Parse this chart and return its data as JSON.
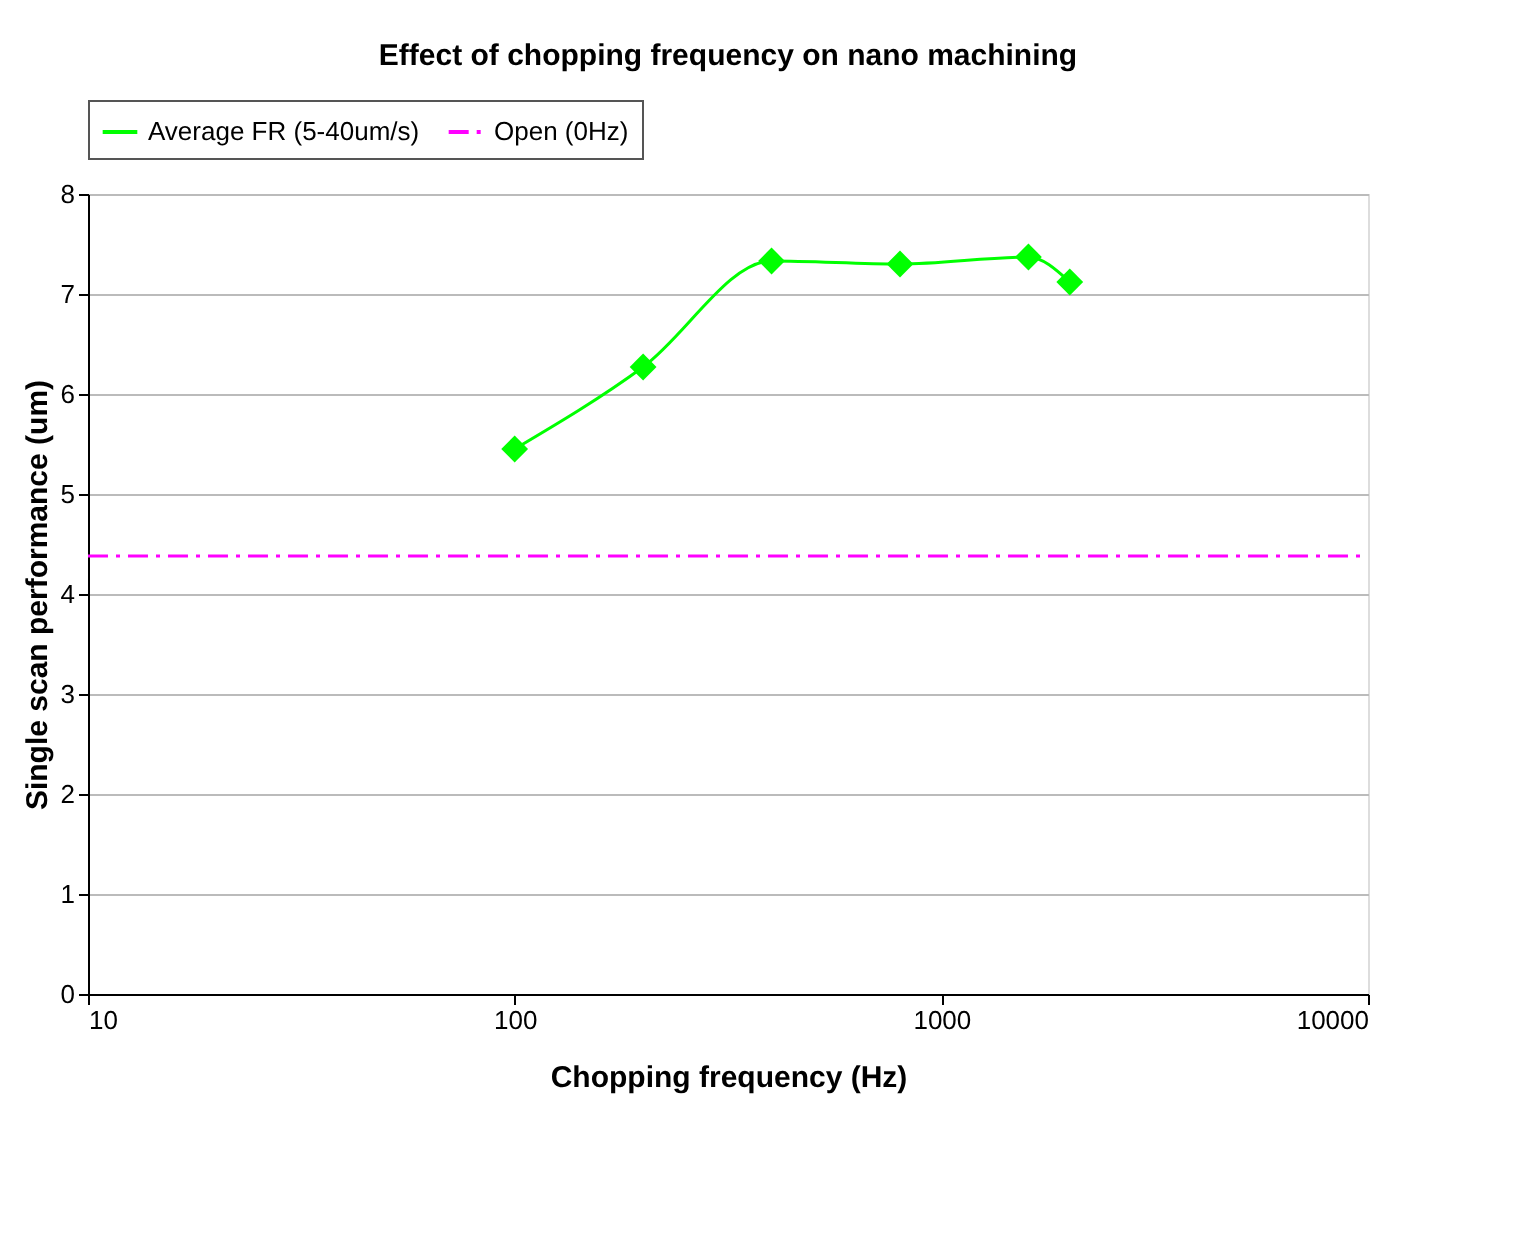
{
  "chart_data": {
    "type": "line",
    "title": "Effect of chopping frequency on nano machining",
    "xlabel": "Chopping frequency (Hz)",
    "ylabel": "Single scan performance (um)",
    "log": "x",
    "xlim": [
      10,
      10000
    ],
    "xticks": [
      10,
      100,
      1000,
      10000
    ],
    "ylim": [
      0,
      8
    ],
    "yticks": [
      0,
      1,
      2,
      3,
      4,
      5,
      6,
      7,
      8
    ],
    "grid": "y",
    "legend": "top",
    "series": [
      {
        "name": "Average FR (5-40um/s)",
        "color": "#00ff00",
        "marker": "diamond",
        "line_style": "solid",
        "x": [
          100,
          200,
          400,
          800,
          1600,
          2000
        ],
        "values": [
          5.45,
          6.27,
          7.33,
          7.3,
          7.37,
          7.12
        ]
      },
      {
        "name": "Open (0Hz)",
        "color": "#ff00ff",
        "marker": "none",
        "line_style": "dashed",
        "x": [
          10,
          10000
        ],
        "values": [
          4.38,
          4.38
        ]
      }
    ]
  }
}
